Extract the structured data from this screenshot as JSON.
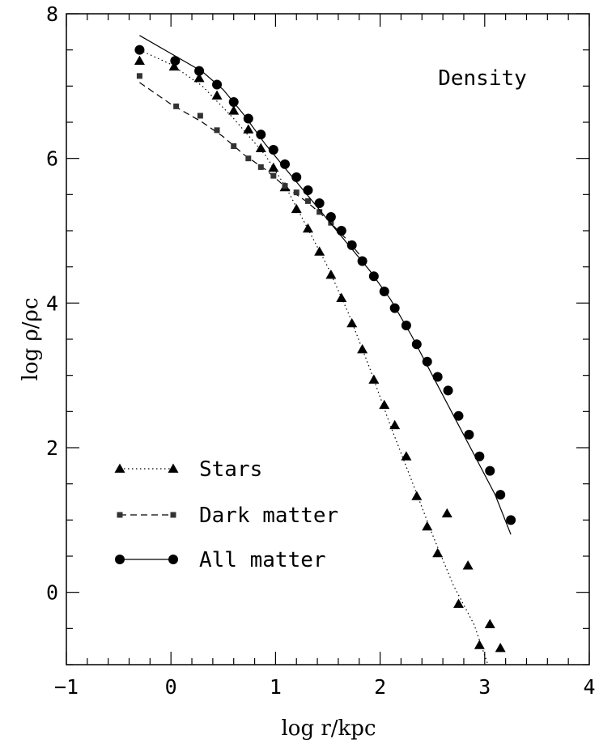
{
  "chart_data": {
    "type": "scatter",
    "xlabel": "log r/kpc",
    "ylabel": "log ρ/ρc",
    "annotation": "Density",
    "xlim": [
      -1,
      4
    ],
    "ylim": [
      -1,
      8
    ],
    "x_ticks": [
      -1,
      0,
      1,
      2,
      3,
      4
    ],
    "x_tick_labels": [
      "−1",
      "0",
      "1",
      "2",
      "3",
      "4"
    ],
    "y_ticks": [
      0,
      2,
      4,
      6,
      8
    ],
    "y_tick_labels": [
      "0",
      "2",
      "4",
      "6",
      "8"
    ],
    "legend_position": "bottom-left",
    "series": [
      {
        "name": "Stars",
        "marker": "triangle",
        "line_style": "dotted",
        "points": [
          [
            -0.3,
            7.35
          ],
          [
            0.03,
            7.27
          ],
          [
            0.27,
            7.11
          ],
          [
            0.44,
            6.87
          ],
          [
            0.6,
            6.66
          ],
          [
            0.74,
            6.4
          ],
          [
            0.86,
            6.14
          ],
          [
            0.98,
            5.87
          ],
          [
            1.09,
            5.6
          ],
          [
            1.2,
            5.3
          ],
          [
            1.31,
            5.03
          ],
          [
            1.42,
            4.71
          ],
          [
            1.53,
            4.39
          ],
          [
            1.63,
            4.07
          ],
          [
            1.73,
            3.72
          ],
          [
            1.83,
            3.36
          ],
          [
            1.94,
            2.94
          ],
          [
            2.04,
            2.59
          ],
          [
            2.14,
            2.31
          ],
          [
            2.25,
            1.88
          ],
          [
            2.35,
            1.33
          ],
          [
            2.45,
            0.91
          ],
          [
            2.55,
            0.54
          ],
          [
            2.64,
            1.09
          ],
          [
            2.75,
            -0.16
          ],
          [
            2.84,
            0.37
          ],
          [
            2.95,
            -0.73
          ],
          [
            3.05,
            -0.44
          ],
          [
            3.15,
            -0.77
          ]
        ],
        "fit": [
          [
            -0.3,
            7.5
          ],
          [
            0.0,
            7.3
          ],
          [
            0.3,
            7.0
          ],
          [
            0.6,
            6.55
          ],
          [
            0.9,
            6.05
          ],
          [
            1.1,
            5.6
          ],
          [
            1.3,
            5.05
          ],
          [
            1.5,
            4.5
          ],
          [
            1.7,
            3.85
          ],
          [
            1.9,
            3.1
          ],
          [
            2.1,
            2.3
          ],
          [
            2.3,
            1.55
          ],
          [
            2.5,
            0.8
          ],
          [
            2.7,
            0.1
          ],
          [
            2.9,
            -0.45
          ],
          [
            3.03,
            -1.0
          ]
        ]
      },
      {
        "name": "Dark matter",
        "marker": "square",
        "line_style": "dashed",
        "points": [
          [
            -0.3,
            7.14
          ],
          [
            0.05,
            6.72
          ],
          [
            0.28,
            6.59
          ],
          [
            0.44,
            6.39
          ],
          [
            0.6,
            6.17
          ],
          [
            0.74,
            6.0
          ],
          [
            0.86,
            5.88
          ],
          [
            0.98,
            5.76
          ],
          [
            1.09,
            5.62
          ],
          [
            1.2,
            5.53
          ],
          [
            1.31,
            5.41
          ],
          [
            1.42,
            5.26
          ],
          [
            1.53,
            5.11
          ],
          [
            1.63,
            4.98
          ],
          [
            1.73,
            4.78
          ],
          [
            1.83,
            4.59
          ]
        ],
        "fit": [
          [
            -0.3,
            7.05
          ],
          [
            0.0,
            6.75
          ],
          [
            0.3,
            6.5
          ],
          [
            0.5,
            6.3
          ],
          [
            0.7,
            6.05
          ],
          [
            0.9,
            5.85
          ],
          [
            1.1,
            5.6
          ],
          [
            1.3,
            5.4
          ],
          [
            1.5,
            5.15
          ],
          [
            1.7,
            4.85
          ],
          [
            1.83,
            4.62
          ]
        ]
      },
      {
        "name": "All matter",
        "marker": "circle",
        "line_style": "solid",
        "points": [
          [
            -0.3,
            7.5
          ],
          [
            0.04,
            7.35
          ],
          [
            0.27,
            7.21
          ],
          [
            0.44,
            7.02
          ],
          [
            0.6,
            6.78
          ],
          [
            0.74,
            6.55
          ],
          [
            0.86,
            6.33
          ],
          [
            0.98,
            6.12
          ],
          [
            1.09,
            5.92
          ],
          [
            1.2,
            5.74
          ],
          [
            1.31,
            5.56
          ],
          [
            1.42,
            5.38
          ],
          [
            1.53,
            5.19
          ],
          [
            1.63,
            5.0
          ],
          [
            1.73,
            4.8
          ],
          [
            1.83,
            4.58
          ],
          [
            1.94,
            4.37
          ],
          [
            2.04,
            4.16
          ],
          [
            2.14,
            3.93
          ],
          [
            2.25,
            3.69
          ],
          [
            2.35,
            3.43
          ],
          [
            2.45,
            3.19
          ],
          [
            2.55,
            2.98
          ],
          [
            2.65,
            2.79
          ],
          [
            2.75,
            2.44
          ],
          [
            2.85,
            2.18
          ],
          [
            2.95,
            1.88
          ],
          [
            3.05,
            1.68
          ],
          [
            3.15,
            1.35
          ],
          [
            3.25,
            1.0
          ]
        ],
        "fit": [
          [
            -0.3,
            7.7
          ],
          [
            0.0,
            7.45
          ],
          [
            0.3,
            7.2
          ],
          [
            0.5,
            6.95
          ],
          [
            0.7,
            6.6
          ],
          [
            0.9,
            6.2
          ],
          [
            1.1,
            5.85
          ],
          [
            1.3,
            5.5
          ],
          [
            1.5,
            5.15
          ],
          [
            1.7,
            4.8
          ],
          [
            1.9,
            4.45
          ],
          [
            2.1,
            4.05
          ],
          [
            2.3,
            3.55
          ],
          [
            2.5,
            3.0
          ],
          [
            2.7,
            2.45
          ],
          [
            2.9,
            1.9
          ],
          [
            3.1,
            1.35
          ],
          [
            3.25,
            0.8
          ]
        ]
      }
    ]
  }
}
